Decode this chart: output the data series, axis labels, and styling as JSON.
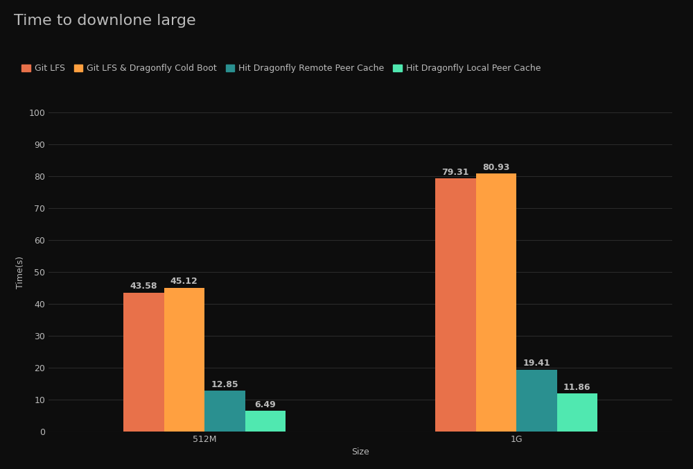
{
  "title": "Time to downlone large",
  "xlabel": "Size",
  "ylabel": "Time(s)",
  "categories": [
    "512M",
    "1G"
  ],
  "series": [
    {
      "name": "Git LFS",
      "color": "#E8714A",
      "values": [
        43.58,
        79.31
      ]
    },
    {
      "name": "Git LFS & Dragonfly Cold Boot",
      "color": "#FFA040",
      "values": [
        45.12,
        80.93
      ]
    },
    {
      "name": "Hit Dragonfly Remote Peer Cache",
      "color": "#2A9090",
      "values": [
        12.85,
        19.41
      ]
    },
    {
      "name": "Hit Dragonfly Local Peer Cache",
      "color": "#50E8B0",
      "values": [
        6.49,
        11.86
      ]
    }
  ],
  "ylim": [
    0,
    100
  ],
  "yticks": [
    0,
    10,
    20,
    30,
    40,
    50,
    60,
    70,
    80,
    90,
    100
  ],
  "background_color": "#0D0D0D",
  "text_color": "#BBBBBB",
  "grid_color": "#2A2A2A",
  "bar_width": 0.13,
  "title_fontsize": 16,
  "label_fontsize": 9,
  "tick_fontsize": 9,
  "value_fontsize": 9
}
